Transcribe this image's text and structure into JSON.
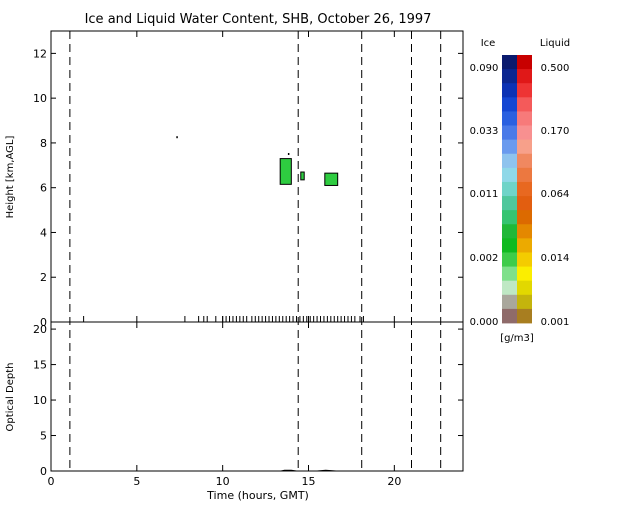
{
  "chart_data": {
    "title": "Ice and Liquid Water Content, SHB, October 26, 1997",
    "x_axis": {
      "label": "Time (hours, GMT)",
      "range": [
        0,
        24
      ],
      "ticks": [
        0,
        5,
        10,
        15,
        20
      ],
      "tick_labels": [
        "0",
        "5",
        "10",
        "15",
        "20"
      ]
    },
    "upper_panel": {
      "type": "heatmap",
      "ylabel": "Height [km,AGL]",
      "ylim": [
        0,
        13
      ],
      "ticks": [
        0,
        2,
        4,
        6,
        8,
        10,
        12
      ],
      "tick_labels": [
        "0",
        "2",
        "4",
        "6",
        "8",
        "10",
        "12"
      ]
    },
    "lower_panel": {
      "type": "line",
      "ylabel": "Optical Depth",
      "ylim": [
        0,
        21
      ],
      "ticks": [
        0,
        5,
        10,
        15,
        20
      ],
      "tick_labels": [
        "0",
        "5",
        "10",
        "15",
        "20"
      ],
      "series": [
        {
          "x": [
            0,
            13.4,
            13.6,
            14.0,
            14.3,
            15.5,
            16.0,
            16.6,
            24
          ],
          "y": [
            0,
            0,
            0.1,
            0.1,
            0,
            0,
            0.1,
            0,
            0
          ]
        }
      ]
    },
    "vertical_dashed_lines_hours": [
      1.1,
      14.4,
      18.1,
      21.0,
      22.7
    ],
    "cloud_patches": [
      {
        "x": [
          13.35,
          14.0
        ],
        "y": [
          6.15,
          7.3
        ],
        "color": "#2ecc40"
      },
      {
        "x": [
          14.55,
          14.75
        ],
        "y": [
          6.35,
          6.7
        ],
        "color": "#2ecc40"
      },
      {
        "x": [
          15.95,
          16.7
        ],
        "y": [
          6.1,
          6.65
        ],
        "color": "#2ecc40"
      }
    ],
    "isolated_points": [
      {
        "x": 7.3,
        "y": 8.3
      },
      {
        "x": 13.8,
        "y": 7.55
      }
    ],
    "observation_ticks_hours": [
      1.9,
      7.8,
      8.6,
      8.9,
      9.1,
      9.6,
      10.0,
      10.2,
      10.4,
      10.6,
      10.8,
      11.0,
      11.2,
      11.4,
      11.7,
      11.9,
      12.1,
      12.3,
      12.5,
      12.7,
      12.9,
      13.1,
      13.3,
      13.5,
      13.7,
      13.9,
      14.1,
      14.3,
      14.5,
      14.7,
      14.9,
      15.1,
      15.3,
      15.5,
      15.7,
      15.9,
      16.1,
      16.3,
      16.5,
      16.7,
      16.9,
      17.1,
      17.3,
      17.5,
      17.7,
      18.0,
      18.2
    ],
    "colorbar": {
      "ice_label": "Ice",
      "liquid_label": "Liquid",
      "units": "[g/m3]",
      "ice_tick_labels": [
        "0.090",
        "0.033",
        "0.011",
        "0.002",
        "0.000"
      ],
      "liquid_tick_labels": [
        "0.500",
        "0.170",
        "0.064",
        "0.014",
        "0.001"
      ],
      "ice_colors": [
        "#0a1a6e",
        "#0b2690",
        "#0c32b4",
        "#1446d2",
        "#2a60e0",
        "#4a7ae8",
        "#6a9aee",
        "#8ec3ee",
        "#8fd8e8",
        "#6fd4c8",
        "#4fc79c",
        "#35c470",
        "#20b838",
        "#0fba20",
        "#3ecc4a",
        "#7ee08a",
        "#bfe8c4",
        "#a9a79c",
        "#8f6b6a"
      ],
      "liquid_colors": [
        "#c80000",
        "#e01818",
        "#ee3434",
        "#f45a5a",
        "#f77a7a",
        "#f89090",
        "#f7a08a",
        "#f08860",
        "#ec7840",
        "#e86820",
        "#e25e10",
        "#dc6a00",
        "#e48800",
        "#ecaa00",
        "#f4cc00",
        "#fbee00",
        "#e2d800",
        "#c4b40c",
        "#a87e20"
      ]
    }
  }
}
